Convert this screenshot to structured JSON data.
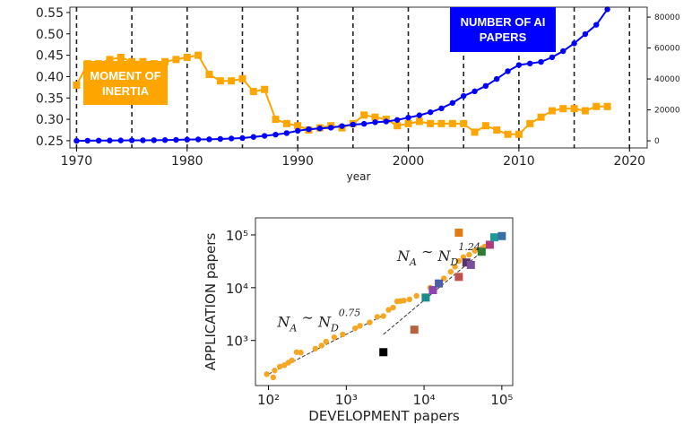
{
  "chart_data": [
    {
      "type": "line",
      "xlabel": "year",
      "x": [
        1970,
        1971,
        1972,
        1973,
        1974,
        1975,
        1976,
        1977,
        1978,
        1979,
        1980,
        1981,
        1982,
        1983,
        1984,
        1985,
        1986,
        1987,
        1988,
        1989,
        1990,
        1991,
        1992,
        1993,
        1994,
        1995,
        1996,
        1997,
        1998,
        1999,
        2000,
        2001,
        2002,
        2003,
        2004,
        2005,
        2006,
        2007,
        2008,
        2009,
        2010,
        2011,
        2012,
        2013,
        2014,
        2015,
        2016,
        2017,
        2018
      ],
      "xlim": [
        1969.4,
        2021.6
      ],
      "xticks": [
        1970,
        1980,
        1990,
        2000,
        2010,
        2020
      ],
      "grid": true,
      "grid_lines": [
        1970,
        1975,
        1980,
        1985,
        1990,
        1995,
        2000,
        2005,
        2010,
        2015,
        2020
      ],
      "grid_style": "dashed",
      "ylim": [
        0.233,
        0.5625
      ],
      "yticks": [
        {
          "value": 0.25,
          "label": "0.25"
        },
        {
          "value": 0.3,
          "label": "0.30"
        },
        {
          "value": 0.35,
          "label": "0.35"
        },
        {
          "value": 0.4,
          "label": "0.40"
        },
        {
          "value": 0.45,
          "label": "0.45"
        },
        {
          "value": 0.5,
          "label": "0.50"
        },
        {
          "value": 0.55,
          "label": "0.55"
        }
      ],
      "y2lim": [
        -4600,
        86400
      ],
      "y2ticks": [
        0,
        20000,
        40000,
        60000,
        80000
      ],
      "series": [
        {
          "name": "MOMENT OF INERTIA",
          "color": "#ffa500",
          "marker": "square",
          "values": [
            0.38,
            0.43,
            0.43,
            0.44,
            0.445,
            0.435,
            0.435,
            0.43,
            0.435,
            0.44,
            0.445,
            0.45,
            0.405,
            0.39,
            0.39,
            0.395,
            0.365,
            0.37,
            0.3,
            0.29,
            0.285,
            0.275,
            0.28,
            0.285,
            0.28,
            0.29,
            0.31,
            0.305,
            0.3,
            0.285,
            0.29,
            0.295,
            0.29,
            0.29,
            0.29,
            0.29,
            0.27,
            0.285,
            0.275,
            0.265,
            0.265,
            0.29,
            0.305,
            0.32,
            0.325,
            0.325,
            0.32,
            0.33,
            0.33
          ]
        },
        {
          "name": "NUMBER OF AI PAPERS",
          "color": "#0000ff",
          "marker": "circle",
          "axis": "y2",
          "values": [
            0,
            100,
            150,
            200,
            250,
            300,
            350,
            400,
            500,
            600,
            800,
            900,
            1000,
            1200,
            1500,
            1800,
            2500,
            3200,
            4000,
            5000,
            6500,
            7500,
            8000,
            8500,
            9500,
            10500,
            11000,
            12000,
            12500,
            13500,
            15000,
            16500,
            18500,
            21000,
            24500,
            29000,
            32000,
            35500,
            40000,
            45000,
            49000,
            50000,
            51000,
            54000,
            58000,
            63000,
            69000,
            75000,
            85000
          ]
        }
      ]
    },
    {
      "type": "scatter",
      "xlabel": "DEVELOPMENT papers",
      "ylabel": "APPLICATION papers",
      "log_x": true,
      "log_y": true,
      "xlim": [
        68,
        138000
      ],
      "ylim": [
        140,
        210000
      ],
      "xticks": [
        {
          "value": 100,
          "label": "10²"
        },
        {
          "value": 1000,
          "label": "10³"
        },
        {
          "value": 10000,
          "label": "10⁴"
        },
        {
          "value": 100000,
          "label": "10⁵"
        }
      ],
      "yticks": [
        {
          "value": 1000,
          "label": "10³"
        },
        {
          "value": 10000,
          "label": "10⁴"
        },
        {
          "value": 100000,
          "label": "10⁵"
        }
      ],
      "series": [
        {
          "color": "#f5a623",
          "marker": "circle",
          "x": [
            95,
            115,
            120,
            140,
            160,
            180,
            200,
            230,
            260,
            400,
            480,
            550,
            700,
            900,
            1300,
            1500,
            2000,
            2500,
            3000,
            3500,
            4000,
            4500,
            5000,
            5500,
            6500,
            8000,
            12000,
            15000,
            18000,
            22000,
            25000,
            28000,
            32000,
            38000,
            45000,
            55000,
            60000
          ],
          "y": [
            230,
            200,
            270,
            320,
            340,
            380,
            420,
            600,
            590,
            700,
            800,
            950,
            1150,
            1300,
            1700,
            1900,
            2200,
            2800,
            2900,
            3800,
            4200,
            5500,
            5600,
            5700,
            6000,
            7000,
            10000,
            12000,
            15000,
            20000,
            25000,
            32000,
            38000,
            42000,
            50000,
            55000,
            60000
          ]
        },
        {
          "marker": "square",
          "colors": [
            "#000000",
            "#b5623e",
            "#1e8a8a",
            "#8e44ad",
            "#4a5fa8",
            "#c0504d",
            "#e07a10",
            "#553366",
            "#7b4f9e",
            "#2e7d32",
            "#b03a7a",
            "#1f9a9a",
            "#3b6ea5"
          ],
          "x": [
            3000,
            7500,
            10500,
            13000,
            15500,
            28000,
            28000,
            35000,
            40000,
            55000,
            70000,
            80000,
            100000
          ],
          "y": [
            600,
            1600,
            6500,
            9000,
            12000,
            16000,
            110000,
            30000,
            27000,
            48000,
            65000,
            90000,
            95000
          ]
        }
      ],
      "fits": [
        {
          "x": [
            100,
            3000
          ],
          "y": [
            230,
            3000
          ]
        },
        {
          "x": [
            3000,
            100000
          ],
          "y": [
            1300,
            100000
          ]
        }
      ],
      "annotations": [
        {
          "parts": [
            "N",
            "A",
            " ∼ ",
            "N",
            "D",
            "0.75"
          ],
          "x": 130,
          "y": 1800
        },
        {
          "parts": [
            "N",
            "A",
            " ∼ ",
            "N",
            "D",
            "1.24"
          ],
          "x": 4500,
          "y": 32000
        }
      ]
    }
  ]
}
